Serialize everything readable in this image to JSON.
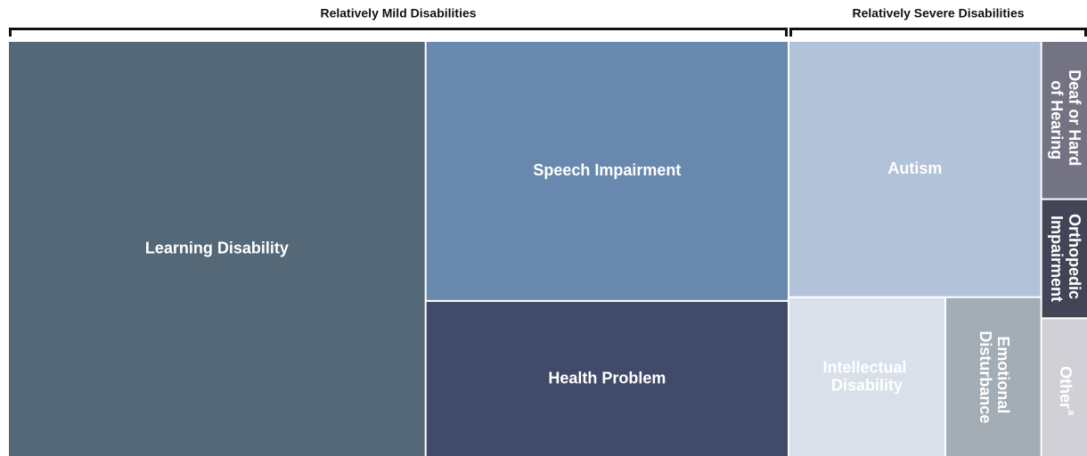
{
  "chart_data": {
    "type": "treemap",
    "groups": [
      {
        "name": "Relatively Mild Disabilities",
        "items": [
          {
            "name": "Learning Disability",
            "value": 38.8,
            "color": "#546878"
          },
          {
            "name": "Speech Impairment",
            "value": 21.1,
            "color": "#6888ae"
          },
          {
            "name": "Health Problem",
            "value": 12.6,
            "color": "#424a6a"
          }
        ]
      },
      {
        "name": "Relatively Severe Disabilities",
        "items": [
          {
            "name": "Autism",
            "value": 14.5,
            "color": "#b2c2d8"
          },
          {
            "name": "Intellectual Disability",
            "value": 5.6,
            "color": "#d9e0ea"
          },
          {
            "name": "Emotional Disturbance",
            "value": 3.4,
            "color": "#a3adb5"
          },
          {
            "name": "Deaf or Hard of Hearing",
            "value": 1.6,
            "color": "#737384"
          },
          {
            "name": "Orthopedic Impairment",
            "value": 1.2,
            "color": "#434556"
          },
          {
            "name": "Other",
            "footnote": "a",
            "value": 1.4,
            "color": "#d0d0d6"
          }
        ]
      }
    ]
  }
}
